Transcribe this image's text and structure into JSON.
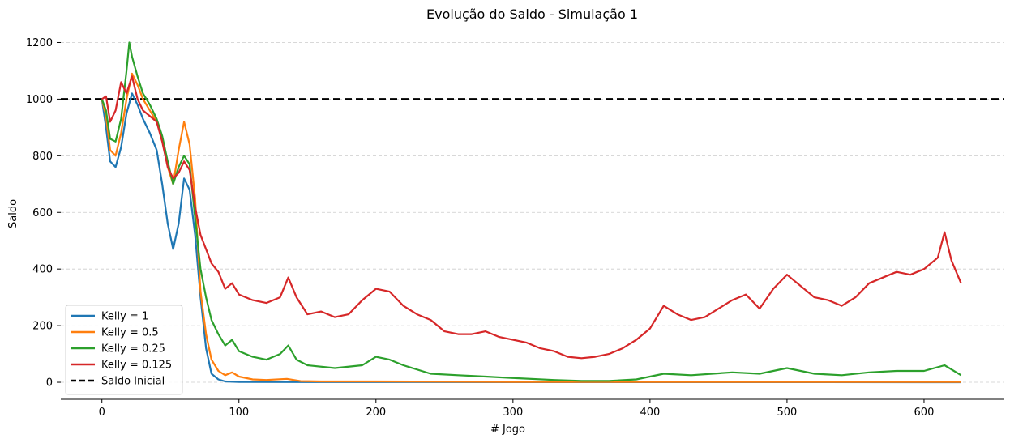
{
  "chart_data": {
    "type": "line",
    "title": "Evolução do Saldo - Simulação 1",
    "xlabel": "# Jogo",
    "ylabel": "Saldo",
    "xlim": [
      -30,
      658
    ],
    "ylim": [
      -60,
      1250
    ],
    "xticks": [
      0,
      100,
      200,
      300,
      400,
      500,
      600
    ],
    "yticks": [
      0,
      200,
      400,
      600,
      800,
      1000,
      1200
    ],
    "grid": "horizontal dashed",
    "legend_position": "lower-left",
    "hline": {
      "name": "Saldo Inicial",
      "y": 1000,
      "color": "#000000",
      "style": "dashed"
    },
    "series": [
      {
        "name": "Kelly = 1",
        "color": "#1f77b4",
        "points": [
          [
            0,
            1000
          ],
          [
            3,
            900
          ],
          [
            6,
            780
          ],
          [
            10,
            760
          ],
          [
            14,
            830
          ],
          [
            18,
            950
          ],
          [
            22,
            1020
          ],
          [
            26,
            980
          ],
          [
            30,
            930
          ],
          [
            35,
            880
          ],
          [
            40,
            820
          ],
          [
            44,
            700
          ],
          [
            48,
            560
          ],
          [
            52,
            470
          ],
          [
            56,
            560
          ],
          [
            60,
            720
          ],
          [
            64,
            680
          ],
          [
            68,
            520
          ],
          [
            72,
            300
          ],
          [
            76,
            120
          ],
          [
            80,
            30
          ],
          [
            85,
            10
          ],
          [
            90,
            3
          ],
          [
            100,
            1
          ],
          [
            150,
            0.5
          ],
          [
            627,
            0
          ]
        ]
      },
      {
        "name": "Kelly = 0.5",
        "color": "#ff7f0e",
        "points": [
          [
            0,
            1000
          ],
          [
            3,
            940
          ],
          [
            6,
            820
          ],
          [
            10,
            800
          ],
          [
            14,
            880
          ],
          [
            18,
            1000
          ],
          [
            22,
            1090
          ],
          [
            26,
            1050
          ],
          [
            30,
            1000
          ],
          [
            35,
            960
          ],
          [
            40,
            920
          ],
          [
            44,
            860
          ],
          [
            48,
            760
          ],
          [
            52,
            700
          ],
          [
            56,
            820
          ],
          [
            60,
            920
          ],
          [
            64,
            840
          ],
          [
            68,
            650
          ],
          [
            72,
            320
          ],
          [
            76,
            170
          ],
          [
            80,
            80
          ],
          [
            85,
            40
          ],
          [
            90,
            25
          ],
          [
            95,
            35
          ],
          [
            100,
            20
          ],
          [
            110,
            10
          ],
          [
            120,
            8
          ],
          [
            135,
            12
          ],
          [
            145,
            4
          ],
          [
            160,
            3
          ],
          [
            200,
            3
          ],
          [
            250,
            2
          ],
          [
            300,
            1
          ],
          [
            627,
            1
          ]
        ]
      },
      {
        "name": "Kelly = 0.25",
        "color": "#2ca02c",
        "points": [
          [
            0,
            1000
          ],
          [
            3,
            960
          ],
          [
            6,
            860
          ],
          [
            10,
            850
          ],
          [
            14,
            930
          ],
          [
            18,
            1100
          ],
          [
            20,
            1200
          ],
          [
            22,
            1150
          ],
          [
            26,
            1080
          ],
          [
            30,
            1020
          ],
          [
            35,
            980
          ],
          [
            40,
            930
          ],
          [
            44,
            870
          ],
          [
            48,
            780
          ],
          [
            52,
            700
          ],
          [
            56,
            760
          ],
          [
            60,
            800
          ],
          [
            64,
            770
          ],
          [
            68,
            580
          ],
          [
            72,
            400
          ],
          [
            76,
            300
          ],
          [
            80,
            220
          ],
          [
            85,
            170
          ],
          [
            90,
            130
          ],
          [
            95,
            150
          ],
          [
            100,
            110
          ],
          [
            110,
            90
          ],
          [
            120,
            80
          ],
          [
            130,
            100
          ],
          [
            136,
            130
          ],
          [
            142,
            80
          ],
          [
            150,
            60
          ],
          [
            170,
            50
          ],
          [
            190,
            60
          ],
          [
            200,
            90
          ],
          [
            210,
            80
          ],
          [
            220,
            60
          ],
          [
            240,
            30
          ],
          [
            260,
            25
          ],
          [
            280,
            20
          ],
          [
            300,
            15
          ],
          [
            330,
            8
          ],
          [
            350,
            5
          ],
          [
            370,
            5
          ],
          [
            390,
            10
          ],
          [
            410,
            30
          ],
          [
            430,
            25
          ],
          [
            460,
            35
          ],
          [
            480,
            30
          ],
          [
            500,
            50
          ],
          [
            520,
            30
          ],
          [
            540,
            25
          ],
          [
            560,
            35
          ],
          [
            580,
            40
          ],
          [
            600,
            40
          ],
          [
            615,
            60
          ],
          [
            627,
            25
          ]
        ]
      },
      {
        "name": "Kelly = 0.125",
        "color": "#d62728",
        "points": [
          [
            0,
            1000
          ],
          [
            3,
            1010
          ],
          [
            6,
            920
          ],
          [
            10,
            960
          ],
          [
            14,
            1060
          ],
          [
            18,
            1020
          ],
          [
            22,
            1080
          ],
          [
            26,
            1000
          ],
          [
            30,
            960
          ],
          [
            35,
            940
          ],
          [
            40,
            920
          ],
          [
            44,
            850
          ],
          [
            48,
            760
          ],
          [
            52,
            720
          ],
          [
            56,
            740
          ],
          [
            60,
            780
          ],
          [
            64,
            750
          ],
          [
            68,
            620
          ],
          [
            72,
            520
          ],
          [
            76,
            470
          ],
          [
            80,
            420
          ],
          [
            85,
            390
          ],
          [
            90,
            330
          ],
          [
            95,
            350
          ],
          [
            100,
            310
          ],
          [
            110,
            290
          ],
          [
            120,
            280
          ],
          [
            130,
            300
          ],
          [
            136,
            370
          ],
          [
            142,
            300
          ],
          [
            150,
            240
          ],
          [
            160,
            250
          ],
          [
            170,
            230
          ],
          [
            180,
            240
          ],
          [
            190,
            290
          ],
          [
            200,
            330
          ],
          [
            210,
            320
          ],
          [
            220,
            270
          ],
          [
            230,
            240
          ],
          [
            240,
            220
          ],
          [
            250,
            180
          ],
          [
            260,
            170
          ],
          [
            270,
            170
          ],
          [
            280,
            180
          ],
          [
            290,
            160
          ],
          [
            300,
            150
          ],
          [
            310,
            140
          ],
          [
            320,
            120
          ],
          [
            330,
            110
          ],
          [
            340,
            90
          ],
          [
            350,
            85
          ],
          [
            360,
            90
          ],
          [
            370,
            100
          ],
          [
            380,
            120
          ],
          [
            390,
            150
          ],
          [
            400,
            190
          ],
          [
            410,
            270
          ],
          [
            420,
            240
          ],
          [
            430,
            220
          ],
          [
            440,
            230
          ],
          [
            450,
            260
          ],
          [
            460,
            290
          ],
          [
            470,
            310
          ],
          [
            480,
            260
          ],
          [
            490,
            330
          ],
          [
            500,
            380
          ],
          [
            510,
            340
          ],
          [
            520,
            300
          ],
          [
            530,
            290
          ],
          [
            540,
            270
          ],
          [
            550,
            300
          ],
          [
            560,
            350
          ],
          [
            570,
            370
          ],
          [
            580,
            390
          ],
          [
            590,
            380
          ],
          [
            600,
            400
          ],
          [
            610,
            440
          ],
          [
            615,
            530
          ],
          [
            620,
            430
          ],
          [
            627,
            350
          ]
        ]
      }
    ]
  }
}
